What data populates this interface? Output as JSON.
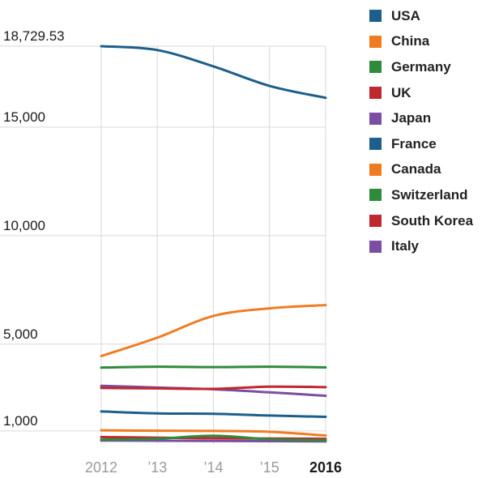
{
  "chart_data": {
    "type": "line",
    "title": "",
    "xlabel": "",
    "ylabel": "",
    "x": [
      2012,
      2013,
      2014,
      2015,
      2016
    ],
    "x_tick_labels": [
      "2012",
      "’13",
      "’14",
      "’15",
      "2016"
    ],
    "y_tick_values": [
      1000,
      5000,
      10000,
      15000,
      18729.53
    ],
    "y_tick_labels": [
      "1,000",
      "5,000",
      "10,000",
      "15,000",
      "18,729.53"
    ],
    "ylim": [
      400,
      18729.53
    ],
    "grid": true,
    "legend_position": "right",
    "series": [
      {
        "name": "USA",
        "color": "#1d5f8a",
        "values": [
          18729.53,
          18550,
          17800,
          16900,
          16350
        ]
      },
      {
        "name": "China",
        "color": "#f07c22",
        "values": [
          4450,
          5300,
          6300,
          6650,
          6800
        ]
      },
      {
        "name": "Germany",
        "color": "#2e8b3a",
        "values": [
          3920,
          3960,
          3940,
          3960,
          3930
        ]
      },
      {
        "name": "UK",
        "color": "#c0282d",
        "values": [
          2980,
          2960,
          2940,
          3040,
          3020
        ]
      },
      {
        "name": "Japan",
        "color": "#7b4ea3",
        "values": [
          3080,
          3000,
          2920,
          2780,
          2620
        ]
      },
      {
        "name": "France",
        "color": "#1d5f8a",
        "values": [
          1900,
          1810,
          1790,
          1710,
          1650
        ]
      },
      {
        "name": "Canada",
        "color": "#f07c22",
        "values": [
          1030,
          1010,
          1000,
          960,
          790
        ]
      },
      {
        "name": "Switzerland",
        "color": "#2e8b3a",
        "values": [
          600,
          640,
          780,
          620,
          570
        ]
      },
      {
        "name": "South Korea",
        "color": "#c0282d",
        "values": [
          720,
          690,
          660,
          650,
          640
        ]
      },
      {
        "name": "Italy",
        "color": "#7b4ea3",
        "values": [
          560,
          550,
          540,
          530,
          520
        ]
      }
    ]
  }
}
